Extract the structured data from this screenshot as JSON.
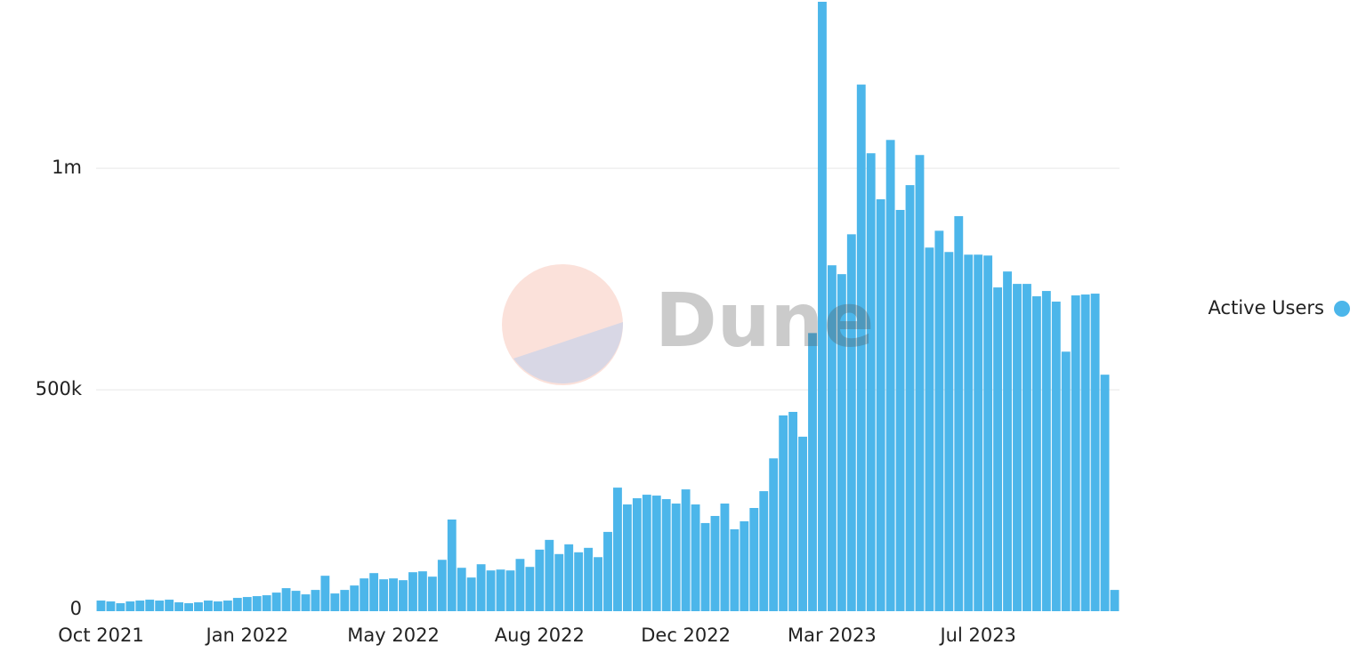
{
  "chart_data": {
    "type": "bar",
    "watermark": "Dune",
    "categories": [
      "Oct 2021",
      null,
      null,
      null,
      null,
      null,
      null,
      null,
      null,
      null,
      null,
      null,
      null,
      null,
      null,
      "Jan 2022",
      null,
      null,
      null,
      null,
      null,
      null,
      null,
      null,
      null,
      null,
      null,
      null,
      null,
      null,
      "May 2022",
      null,
      null,
      null,
      null,
      null,
      null,
      null,
      null,
      null,
      null,
      null,
      null,
      null,
      null,
      "Aug 2022",
      null,
      null,
      null,
      null,
      null,
      null,
      null,
      null,
      null,
      null,
      null,
      null,
      null,
      null,
      "Dec 2022",
      null,
      null,
      null,
      null,
      null,
      null,
      null,
      null,
      null,
      null,
      null,
      null,
      null,
      null,
      "Mar 2023",
      null,
      null,
      null,
      null,
      null,
      null,
      null,
      null,
      null,
      null,
      null,
      null,
      null,
      null,
      "Jul 2023",
      null,
      null,
      null,
      null,
      null,
      null,
      null,
      null,
      null,
      null,
      null,
      null,
      null,
      null
    ],
    "series": [
      {
        "name": "Active Users",
        "color": "#4cb6ea",
        "values": [
          24000,
          22000,
          18000,
          22000,
          24000,
          26000,
          24000,
          26000,
          20000,
          18000,
          20000,
          24000,
          22000,
          24000,
          30000,
          32000,
          34000,
          36000,
          42000,
          52000,
          46000,
          38000,
          48000,
          80000,
          40000,
          48000,
          58000,
          74000,
          86000,
          72000,
          74000,
          70000,
          88000,
          90000,
          78000,
          116000,
          207000,
          98000,
          76000,
          106000,
          92000,
          94000,
          92000,
          118000,
          100000,
          139000,
          161000,
          129000,
          151000,
          133000,
          143000,
          122000,
          179000,
          279000,
          241000,
          255000,
          263000,
          261000,
          253000,
          243000,
          275000,
          241000,
          199000,
          215000,
          243000,
          185000,
          203000,
          233000,
          271000,
          345000,
          442000,
          450000,
          394000,
          628000,
          1376000,
          781000,
          761000,
          851000,
          1189000,
          1034000,
          930000,
          1064000,
          906000,
          962000,
          1030000,
          821000,
          859000,
          811000,
          892000,
          805000,
          805000,
          803000,
          731000,
          767000,
          739000,
          739000,
          711000,
          723000,
          699000,
          586000,
          713000,
          715000,
          717000,
          534000,
          48000
        ]
      }
    ],
    "ylim": [
      0,
      1380000
    ],
    "yticks": [
      0,
      {
        "value": 500000,
        "label": "500k"
      },
      {
        "value": 1000000,
        "label": "1m"
      }
    ],
    "grid": true,
    "legend": "right"
  }
}
